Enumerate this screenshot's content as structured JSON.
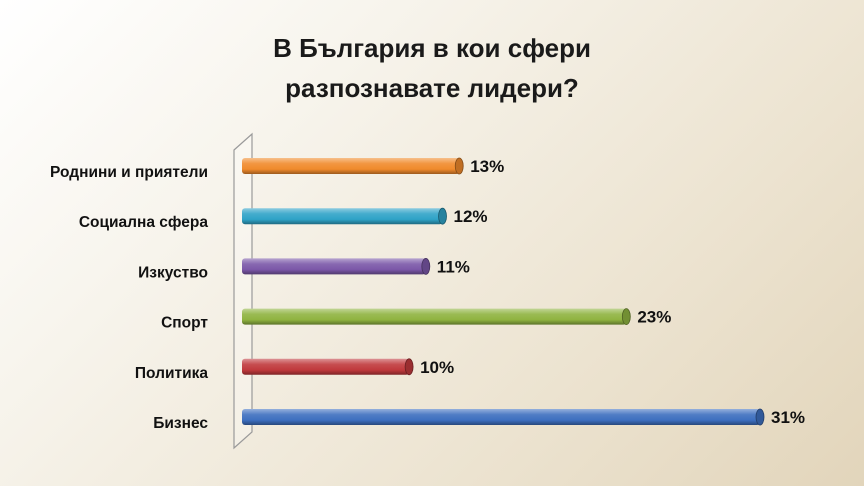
{
  "chart_data": {
    "type": "bar",
    "orientation": "horizontal",
    "title_lines": [
      "В България в кои сфери",
      "разпознавате лидери?"
    ],
    "categories": [
      "Роднини и приятели",
      "Социална сфера",
      "Изкуство",
      "Спорт",
      "Политика",
      "Бизнес"
    ],
    "values": [
      13,
      12,
      11,
      23,
      10,
      31
    ],
    "labels": [
      "13%",
      "12%",
      "11%",
      "23%",
      "10%",
      "31%"
    ],
    "colors": [
      "#f08a2c",
      "#2fa3c7",
      "#7b57a8",
      "#8fb340",
      "#c0393c",
      "#3d6fbf"
    ],
    "xlim": [
      0,
      31
    ],
    "grid": false,
    "legend": "none"
  }
}
